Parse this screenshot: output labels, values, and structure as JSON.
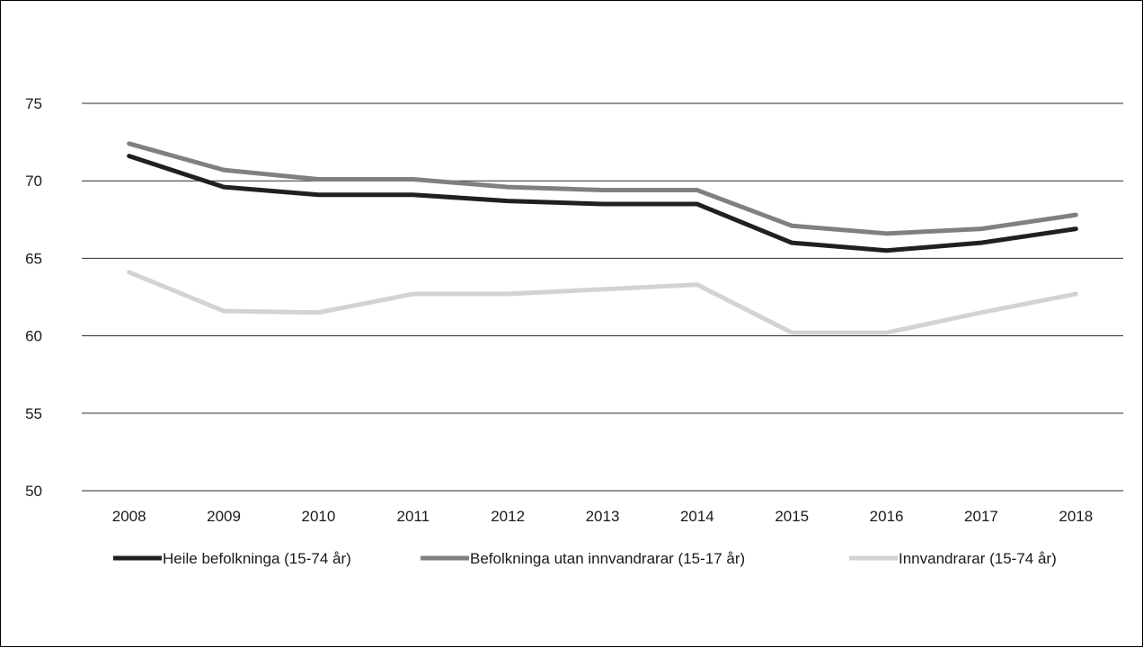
{
  "chart_data": {
    "type": "line",
    "title": "",
    "xlabel": "",
    "ylabel": "",
    "categories": [
      "2008",
      "2009",
      "2010",
      "2011",
      "2012",
      "2013",
      "2014",
      "2015",
      "2016",
      "2017",
      "2018"
    ],
    "ylim": [
      50,
      75
    ],
    "yticks": [
      50,
      55,
      60,
      65,
      70,
      75
    ],
    "grid": true,
    "legend_position": "bottom",
    "series": [
      {
        "name": "Heile befolkninga (15-74 år)",
        "color": "#231f20",
        "values": [
          71.6,
          69.6,
          69.1,
          69.1,
          68.7,
          68.5,
          68.5,
          66.0,
          65.5,
          66.0,
          66.9
        ]
      },
      {
        "name": "Befolkninga utan innvandrarar (15-17 år)",
        "color": "#808080",
        "values": [
          72.4,
          70.7,
          70.1,
          70.1,
          69.6,
          69.4,
          69.4,
          67.1,
          66.6,
          66.9,
          67.8
        ]
      },
      {
        "name": "Innvandrarar (15-74 år)",
        "color": "#d3d3d3",
        "values": [
          64.1,
          61.6,
          61.5,
          62.7,
          62.7,
          63.0,
          63.3,
          60.2,
          60.2,
          61.5,
          62.7
        ]
      }
    ]
  }
}
